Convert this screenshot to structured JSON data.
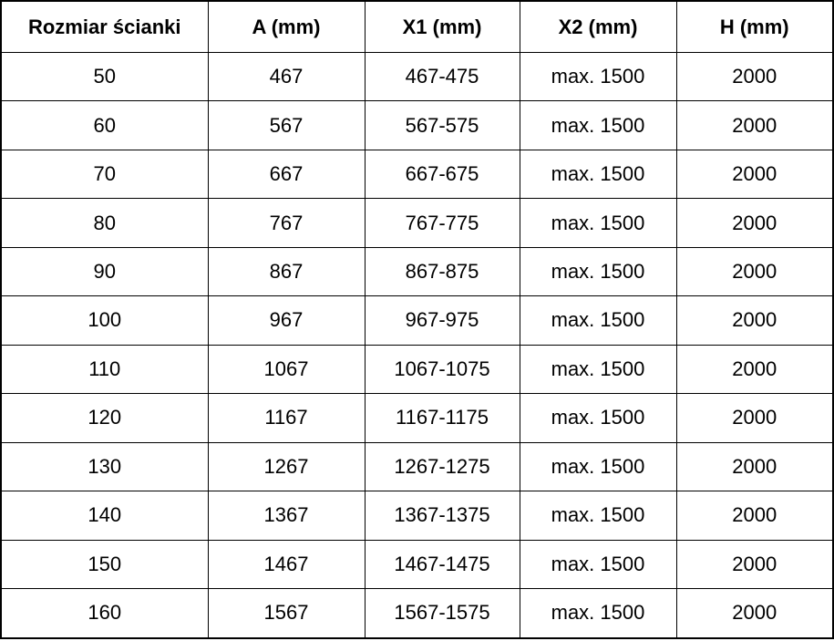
{
  "table": {
    "headers": [
      "Rozmiar ścianki",
      "A (mm)",
      "X1 (mm)",
      "X2 (mm)",
      "H (mm)"
    ],
    "rows": [
      [
        "50",
        "467",
        "467-475",
        "max. 1500",
        "2000"
      ],
      [
        "60",
        "567",
        "567-575",
        "max. 1500",
        "2000"
      ],
      [
        "70",
        "667",
        "667-675",
        "max. 1500",
        "2000"
      ],
      [
        "80",
        "767",
        "767-775",
        "max. 1500",
        "2000"
      ],
      [
        "90",
        "867",
        "867-875",
        "max. 1500",
        "2000"
      ],
      [
        "100",
        "967",
        "967-975",
        "max. 1500",
        "2000"
      ],
      [
        "110",
        "1067",
        "1067-1075",
        "max. 1500",
        "2000"
      ],
      [
        "120",
        "1167",
        "1167-1175",
        "max. 1500",
        "2000"
      ],
      [
        "130",
        "1267",
        "1267-1275",
        "max. 1500",
        "2000"
      ],
      [
        "140",
        "1367",
        "1367-1375",
        "max. 1500",
        "2000"
      ],
      [
        "150",
        "1467",
        "1467-1475",
        "max. 1500",
        "2000"
      ],
      [
        "160",
        "1567",
        "1567-1575",
        "max. 1500",
        "2000"
      ]
    ],
    "colors": {
      "border": "#000000",
      "text": "#000000",
      "background": "#ffffff"
    }
  }
}
